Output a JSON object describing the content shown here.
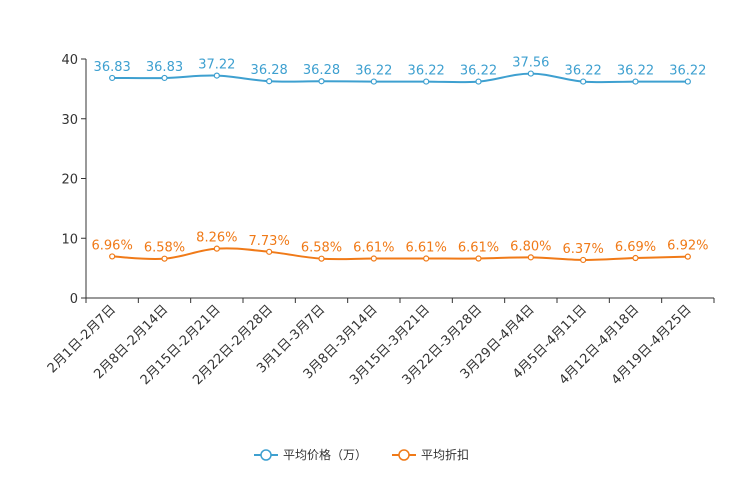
{
  "chart_data": {
    "type": "line",
    "title": "",
    "xlabel": "",
    "ylabel": "",
    "ylim": [
      0,
      40
    ],
    "yticks": [
      0,
      10,
      20,
      30,
      40
    ],
    "categories": [
      "2月1日-2月7日",
      "2月8日-2月14日",
      "2月15日-2月21日",
      "2月22日-2月28日",
      "3月1日-3月7日",
      "3月8日-3月14日",
      "3月15日-3月21日",
      "3月22日-3月28日",
      "3月29日-4月4日",
      "4月5日-4月11日",
      "4月12日-4月18日",
      "4月19日-4月25日"
    ],
    "series": [
      {
        "name": "平均价格（万）",
        "color": "#3ea0d0",
        "values": [
          36.83,
          36.83,
          37.22,
          36.28,
          36.28,
          36.22,
          36.22,
          36.22,
          37.56,
          36.22,
          36.22,
          36.22
        ],
        "labels": [
          "36.83",
          "36.83",
          "37.22",
          "36.28",
          "36.28",
          "36.22",
          "36.22",
          "36.22",
          "37.56",
          "36.22",
          "36.22",
          "36.22"
        ]
      },
      {
        "name": "平均折扣",
        "color": "#f07a18",
        "values": [
          6.96,
          6.58,
          8.26,
          7.73,
          6.58,
          6.61,
          6.61,
          6.61,
          6.8,
          6.37,
          6.69,
          6.92
        ],
        "labels": [
          "6.96%",
          "6.58%",
          "8.26%",
          "7.73%",
          "6.58%",
          "6.61%",
          "6.61%",
          "6.61%",
          "6.80%",
          "6.37%",
          "6.69%",
          "6.92%"
        ]
      }
    ],
    "legend_position": "bottom-center"
  }
}
